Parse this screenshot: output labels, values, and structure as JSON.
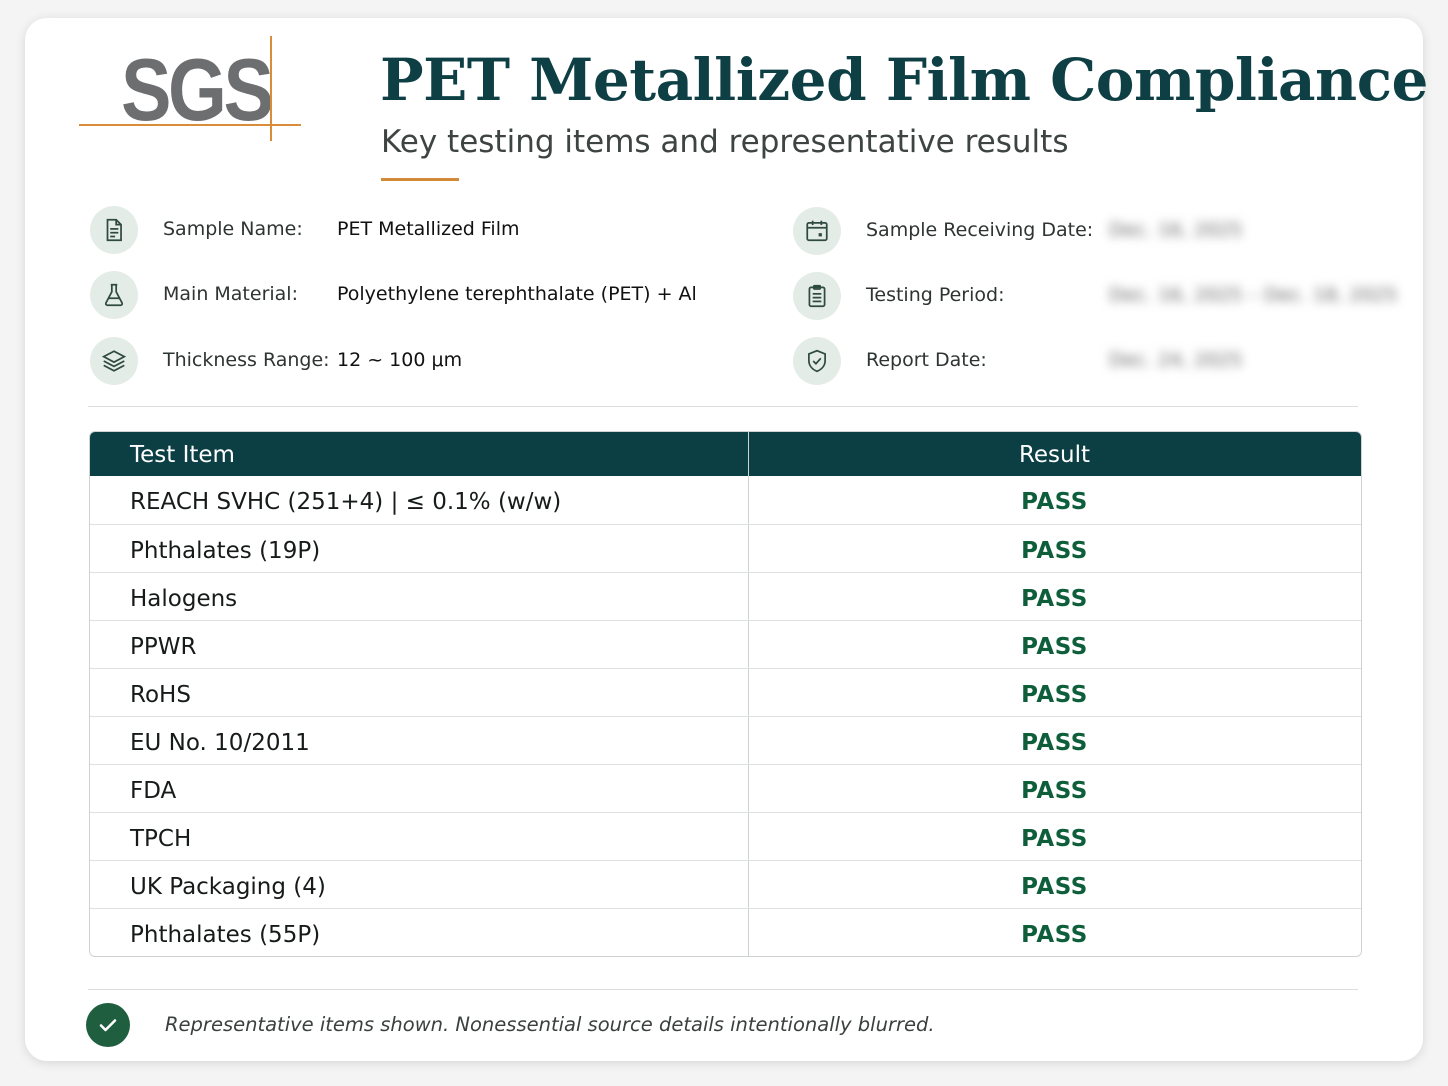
{
  "logo": {
    "text": "SGS",
    "accent_color": "#d98d3a"
  },
  "header": {
    "title": "PET Metallized Film Compliance",
    "subtitle": "Key testing items and representative results"
  },
  "info_left": [
    {
      "icon": "document-icon",
      "label": "Sample Name:",
      "value": "PET Metallized Film"
    },
    {
      "icon": "flask-icon",
      "label": "Main Material:",
      "value": "Polyethylene terephthalate (PET) + Al"
    },
    {
      "icon": "layers-icon",
      "label": "Thickness Range:",
      "value": "12 ~ 100 μm"
    }
  ],
  "info_right": [
    {
      "icon": "calendar-icon",
      "label": "Sample Receiving Date:",
      "value": "Dec. 16, 2025"
    },
    {
      "icon": "clipboard-icon",
      "label": "Testing Period:",
      "value": "Dec. 16, 2025 – Dec. 18, 2025"
    },
    {
      "icon": "shield-check-icon",
      "label": "Report Date:",
      "value": "Dec. 24, 2025"
    }
  ],
  "table": {
    "headers": [
      "Test Item",
      "Result"
    ],
    "rows": [
      {
        "item": "REACH SVHC (251+4)  |  ≤ 0.1% (w/w)",
        "result": "PASS"
      },
      {
        "item": "Phthalates (19P)",
        "result": "PASS"
      },
      {
        "item": "Halogens",
        "result": "PASS"
      },
      {
        "item": "PPWR",
        "result": "PASS"
      },
      {
        "item": "RoHS",
        "result": "PASS"
      },
      {
        "item": "EU No. 10/2011",
        "result": "PASS"
      },
      {
        "item": "FDA",
        "result": "PASS"
      },
      {
        "item": "TPCH",
        "result": "PASS"
      },
      {
        "item": "UK Packaging (4)",
        "result": "PASS"
      },
      {
        "item": "Phthalates (55P)",
        "result": "PASS"
      }
    ]
  },
  "footer": {
    "icon": "check-circle-icon",
    "note": "Representative items shown. Nonessential source details intentionally blurred."
  },
  "colors": {
    "primary": "#0c3f44",
    "pass": "#0e5e3c",
    "accent": "#d28a38"
  }
}
